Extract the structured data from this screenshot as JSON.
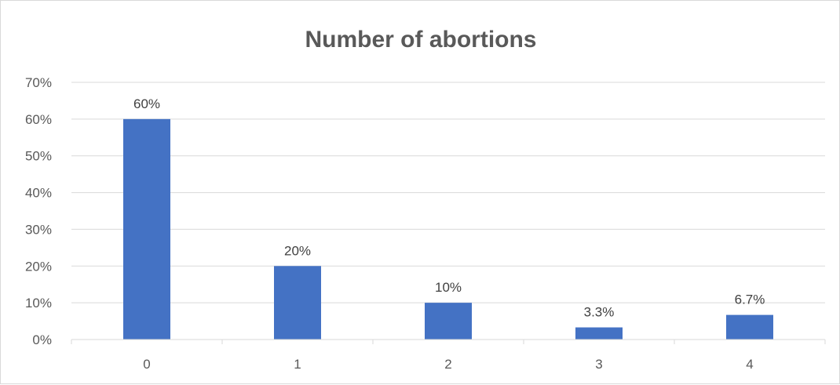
{
  "chart_data": {
    "type": "bar",
    "title": "Number of abortions",
    "categories": [
      "0",
      "1",
      "2",
      "3",
      "4"
    ],
    "values": [
      60,
      20,
      10,
      3.3,
      6.7
    ],
    "data_labels": [
      "60%",
      "20%",
      "10%",
      "3.3%",
      "6.7%"
    ],
    "ylim": [
      0,
      70
    ],
    "yticks": [
      0,
      10,
      20,
      30,
      40,
      50,
      60,
      70
    ],
    "ytick_labels": [
      "0%",
      "10%",
      "20%",
      "30%",
      "40%",
      "50%",
      "60%",
      "70%"
    ],
    "grid": true,
    "legend": "none",
    "bar_color": "#4472c4",
    "grid_color": "#d9d9d9",
    "text_color": "#595959"
  }
}
